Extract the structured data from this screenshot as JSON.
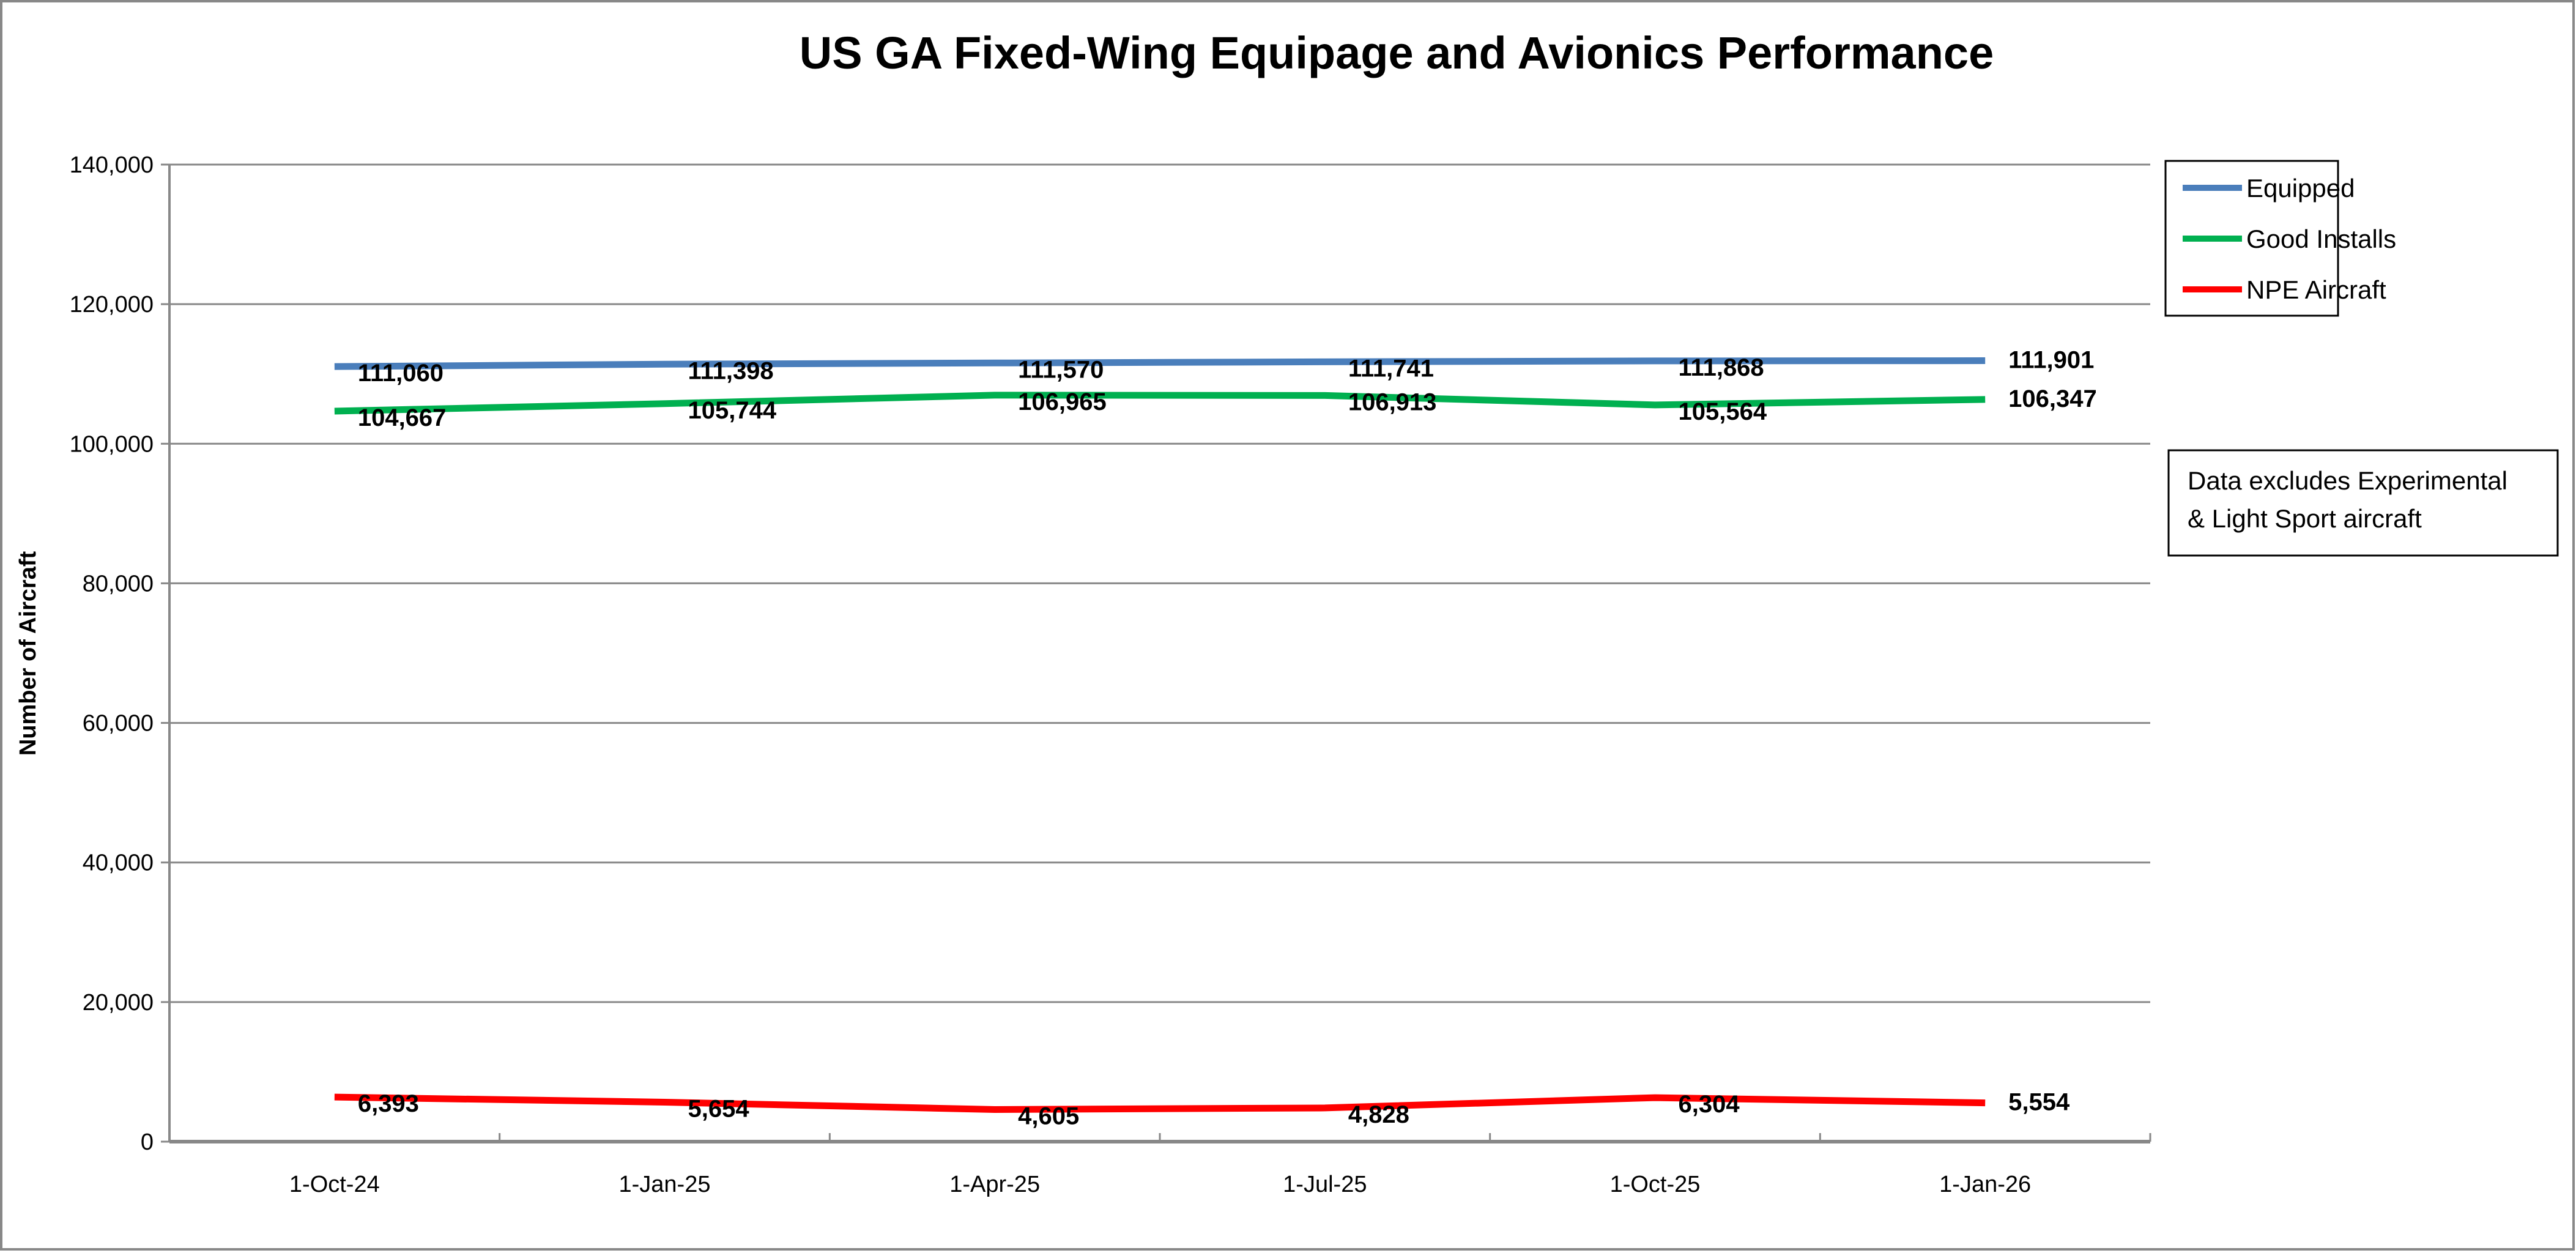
{
  "chart_data": {
    "type": "line",
    "title": "US GA Fixed-Wing Equipage and Avionics Performance",
    "xlabel": "",
    "ylabel": "Number of Aircraft",
    "categories": [
      "1-Oct-24",
      "1-Jan-25",
      "1-Apr-25",
      "1-Jul-25",
      "1-Oct-25",
      "1-Jan-26"
    ],
    "ylim": [
      0,
      140000
    ],
    "yticks": [
      0,
      20000,
      40000,
      60000,
      80000,
      100000,
      120000,
      140000
    ],
    "ytick_labels": [
      "0",
      "20,000",
      "40,000",
      "60,000",
      "80,000",
      "100,000",
      "120,000",
      "140,000"
    ],
    "grid": "horizontal",
    "legend_position": "right",
    "series": [
      {
        "name": "Equipped",
        "color": "#4A7EBB",
        "values": [
          111060,
          111398,
          111570,
          111741,
          111868,
          111901
        ],
        "labels": [
          "111,060",
          "111,398",
          "111,570",
          "111,741",
          "111,868",
          "111,901"
        ]
      },
      {
        "name": "Good Installs",
        "color": "#00B050",
        "values": [
          104667,
          105744,
          106965,
          106913,
          105564,
          106347
        ],
        "labels": [
          "104,667",
          "105,744",
          "106,965",
          "106,913",
          "105,564",
          "106,347"
        ]
      },
      {
        "name": "NPE Aircraft",
        "color": "#FF0000",
        "values": [
          6393,
          5654,
          4605,
          4828,
          6304,
          5554
        ],
        "labels": [
          "6,393",
          "5,654",
          "4,605",
          "4,828",
          "6,304",
          "5,554"
        ]
      }
    ],
    "annotation_lines": [
      "Data excludes Experimental",
      "& Light Sport aircraft"
    ]
  }
}
